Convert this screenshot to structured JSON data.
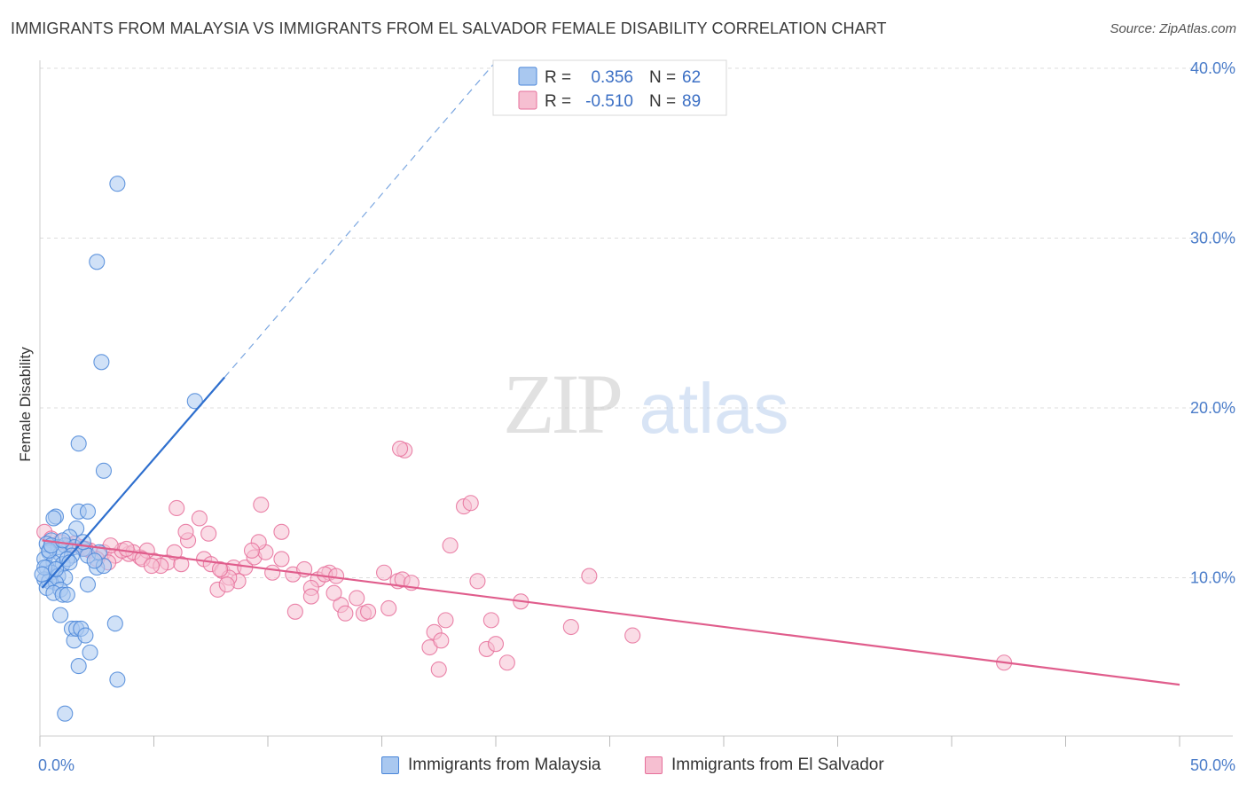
{
  "title": "IMMIGRANTS FROM MALAYSIA VS IMMIGRANTS FROM EL SALVADOR FEMALE DISABILITY CORRELATION CHART",
  "source": "Source: ZipAtlas.com",
  "watermark": {
    "zip": "ZIP",
    "atlas": "atlas"
  },
  "colors": {
    "malaysia": "#4a86d8",
    "malaysia_fill": "#a9c8f0",
    "elsalvador": "#e66f9a",
    "elsalvador_fill": "#f6bfd1",
    "axis_label": "#4a7cc9",
    "grid": "#dddddd"
  },
  "legend_box": {
    "rows": [
      {
        "r_label": "R =",
        "r_value": "0.356",
        "n_label": "N =",
        "n_value": "62",
        "series": "malaysia"
      },
      {
        "r_label": "R =",
        "r_value": "-0.510",
        "n_label": "N =",
        "n_value": "89",
        "series": "elsalvador"
      }
    ]
  },
  "bottom_legend": [
    {
      "label": "Immigrants from Malaysia",
      "series": "malaysia"
    },
    {
      "label": "Immigrants from El Salvador",
      "series": "elsalvador"
    }
  ],
  "chart_data": {
    "type": "scatter",
    "xlabel": "",
    "ylabel": "Female Disability",
    "xlim": [
      0,
      50
    ],
    "ylim": [
      0,
      42
    ],
    "x_tick_labels": [
      {
        "value": 0,
        "label": "0.0%"
      },
      {
        "value": 50,
        "label": "50.0%"
      }
    ],
    "y_tick_labels": [
      {
        "value": 10,
        "label": "10.0%"
      },
      {
        "value": 20,
        "label": "20.0%"
      },
      {
        "value": 30,
        "label": "30.0%"
      },
      {
        "value": 40,
        "label": "40.0%"
      }
    ],
    "x_minor_ticks": [
      0,
      5,
      10,
      15,
      20,
      25,
      30,
      35,
      40,
      45,
      50
    ],
    "grid": true,
    "series": [
      {
        "name": "Immigrants from Malaysia",
        "key": "malaysia",
        "r": 0.356,
        "n": 62,
        "trend": {
          "x0": 0.1,
          "y0": 9.4,
          "x1": 8.1,
          "y1": 21.8,
          "dashed_to": {
            "x": 20.0,
            "y": 40.4
          }
        },
        "points": [
          [
            3.4,
            33.2
          ],
          [
            2.5,
            28.6
          ],
          [
            2.7,
            22.7
          ],
          [
            6.8,
            20.4
          ],
          [
            1.7,
            17.9
          ],
          [
            2.8,
            16.3
          ],
          [
            0.7,
            13.6
          ],
          [
            0.6,
            13.5
          ],
          [
            1.7,
            13.9
          ],
          [
            2.1,
            13.9
          ],
          [
            1.6,
            12.9
          ],
          [
            1.3,
            12.4
          ],
          [
            0.5,
            12.2
          ],
          [
            0.3,
            12.0
          ],
          [
            0.8,
            11.8
          ],
          [
            1.1,
            11.9
          ],
          [
            1.5,
            11.8
          ],
          [
            1.9,
            11.7
          ],
          [
            0.4,
            11.5
          ],
          [
            0.9,
            11.4
          ],
          [
            1.4,
            11.3
          ],
          [
            2.1,
            11.3
          ],
          [
            0.2,
            11.1
          ],
          [
            0.6,
            10.9
          ],
          [
            1.0,
            10.8
          ],
          [
            0.3,
            10.6
          ],
          [
            0.5,
            10.3
          ],
          [
            0.8,
            10.1
          ],
          [
            1.1,
            10.0
          ],
          [
            0.2,
            9.9
          ],
          [
            0.4,
            9.8
          ],
          [
            0.7,
            9.7
          ],
          [
            0.3,
            9.4
          ],
          [
            0.9,
            9.3
          ],
          [
            0.6,
            9.1
          ],
          [
            1.0,
            9.0
          ],
          [
            1.2,
            9.0
          ],
          [
            2.1,
            9.6
          ],
          [
            2.5,
            10.6
          ],
          [
            2.8,
            10.7
          ],
          [
            0.9,
            7.8
          ],
          [
            1.4,
            7.0
          ],
          [
            1.5,
            6.3
          ],
          [
            1.6,
            7.0
          ],
          [
            1.8,
            7.0
          ],
          [
            2.0,
            6.6
          ],
          [
            2.2,
            5.6
          ],
          [
            1.7,
            4.8
          ],
          [
            3.3,
            7.3
          ],
          [
            3.4,
            4.0
          ],
          [
            1.1,
            2.0
          ],
          [
            0.2,
            10.6
          ],
          [
            0.4,
            11.6
          ],
          [
            1.2,
            11.1
          ],
          [
            1.9,
            12.1
          ],
          [
            2.6,
            11.5
          ],
          [
            0.1,
            10.2
          ],
          [
            0.7,
            10.5
          ],
          [
            1.3,
            10.9
          ],
          [
            0.5,
            11.9
          ],
          [
            2.4,
            11.0
          ],
          [
            1.0,
            12.2
          ]
        ]
      },
      {
        "name": "Immigrants from El Salvador",
        "key": "elsalvador",
        "r": -0.51,
        "n": 89,
        "trend": {
          "x0": 0.1,
          "y0": 12.2,
          "x1": 50.0,
          "y1": 3.7
        },
        "points": [
          [
            0.2,
            12.7
          ],
          [
            0.5,
            12.3
          ],
          [
            0.9,
            12.1
          ],
          [
            1.3,
            11.9
          ],
          [
            1.8,
            11.8
          ],
          [
            2.2,
            11.6
          ],
          [
            2.8,
            11.5
          ],
          [
            3.3,
            11.3
          ],
          [
            3.9,
            11.4
          ],
          [
            4.4,
            11.2
          ],
          [
            5.0,
            11.0
          ],
          [
            5.6,
            10.9
          ],
          [
            6.2,
            10.8
          ],
          [
            2.5,
            11.1
          ],
          [
            3.0,
            10.9
          ],
          [
            3.6,
            11.6
          ],
          [
            4.1,
            11.5
          ],
          [
            4.7,
            11.6
          ],
          [
            5.3,
            10.7
          ],
          [
            5.9,
            11.5
          ],
          [
            6.5,
            12.2
          ],
          [
            7.2,
            11.1
          ],
          [
            7.5,
            10.8
          ],
          [
            8.0,
            10.4
          ],
          [
            8.5,
            10.6
          ],
          [
            9.0,
            10.6
          ],
          [
            9.4,
            11.2
          ],
          [
            9.9,
            11.5
          ],
          [
            10.6,
            11.1
          ],
          [
            11.1,
            10.2
          ],
          [
            11.6,
            10.5
          ],
          [
            12.2,
            9.9
          ],
          [
            12.7,
            10.3
          ],
          [
            11.9,
            9.4
          ],
          [
            8.7,
            9.8
          ],
          [
            7.8,
            9.3
          ],
          [
            7.0,
            13.5
          ],
          [
            7.4,
            12.6
          ],
          [
            6.0,
            14.1
          ],
          [
            6.4,
            12.7
          ],
          [
            9.6,
            12.1
          ],
          [
            9.3,
            11.6
          ],
          [
            9.7,
            14.3
          ],
          [
            10.6,
            12.7
          ],
          [
            11.2,
            8.0
          ],
          [
            11.9,
            8.9
          ],
          [
            12.5,
            10.2
          ],
          [
            13.0,
            10.1
          ],
          [
            13.2,
            8.4
          ],
          [
            13.4,
            7.9
          ],
          [
            13.9,
            8.8
          ],
          [
            14.2,
            7.9
          ],
          [
            14.4,
            8.0
          ],
          [
            15.1,
            10.3
          ],
          [
            15.3,
            8.2
          ],
          [
            15.7,
            9.8
          ],
          [
            15.9,
            9.9
          ],
          [
            16.3,
            9.7
          ],
          [
            16.0,
            17.5
          ],
          [
            15.8,
            17.6
          ],
          [
            17.3,
            6.8
          ],
          [
            17.1,
            5.9
          ],
          [
            17.5,
            4.6
          ],
          [
            18.0,
            11.9
          ],
          [
            17.8,
            7.5
          ],
          [
            17.6,
            6.3
          ],
          [
            18.6,
            14.2
          ],
          [
            18.9,
            14.4
          ],
          [
            19.2,
            9.8
          ],
          [
            19.6,
            5.8
          ],
          [
            19.8,
            7.5
          ],
          [
            20.0,
            6.1
          ],
          [
            20.5,
            5.0
          ],
          [
            21.1,
            8.6
          ],
          [
            23.3,
            7.1
          ],
          [
            24.1,
            10.1
          ],
          [
            26.0,
            6.6
          ],
          [
            42.3,
            5.0
          ],
          [
            3.1,
            11.9
          ],
          [
            1.5,
            12.0
          ],
          [
            2.0,
            11.7
          ],
          [
            3.8,
            11.7
          ],
          [
            4.5,
            11.1
          ],
          [
            4.9,
            10.7
          ],
          [
            8.3,
            10.0
          ],
          [
            8.2,
            9.6
          ],
          [
            7.9,
            10.5
          ],
          [
            10.2,
            10.3
          ],
          [
            12.9,
            9.1
          ]
        ]
      }
    ]
  }
}
